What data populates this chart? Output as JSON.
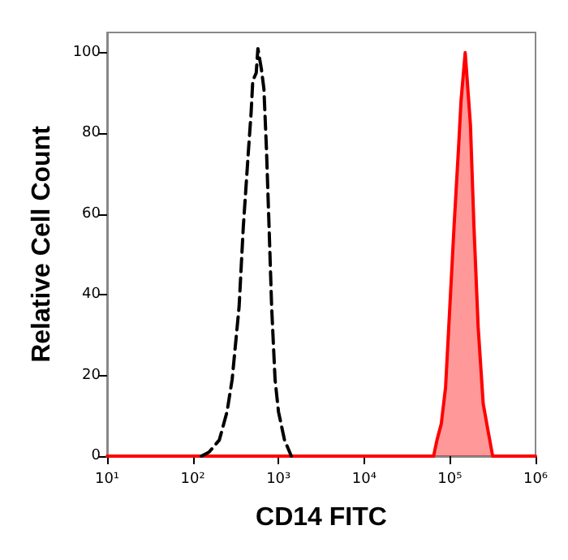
{
  "chart_data": {
    "type": "line",
    "xlabel": "CD14 FITC",
    "ylabel": "Relative Cell Count",
    "log": "x",
    "xlim": [
      10,
      1000000
    ],
    "ylim": [
      0,
      105
    ],
    "xticks": [
      {
        "value": 10,
        "label": "10¹"
      },
      {
        "value": 100,
        "label": "10²"
      },
      {
        "value": 1000,
        "label": "10³"
      },
      {
        "value": 10000,
        "label": "10⁴"
      },
      {
        "value": 100000,
        "label": "10⁵"
      },
      {
        "value": 1000000,
        "label": "10⁶"
      }
    ],
    "yticks": [
      0,
      20,
      40,
      60,
      80,
      100
    ],
    "grid": false,
    "marker": "none",
    "series": [
      {
        "type": "line",
        "color": "#000000",
        "line_style": "dashed",
        "x": [
          126,
          155,
          204,
          251,
          288,
          347,
          389,
          447,
          479,
          501,
          550,
          575,
          631,
          676,
          724,
          776,
          832,
          912,
          1000,
          1175,
          1349,
          1413
        ],
        "values": [
          0,
          1,
          4,
          11,
          19,
          37,
          57,
          76,
          85,
          93,
          95,
          101,
          96,
          91,
          76,
          57,
          37,
          19,
          11,
          4,
          1,
          0
        ]
      },
      {
        "type": "area",
        "color": "#ff0000",
        "line_style": "solid",
        "x": [
          10,
          64600,
          70800,
          79400,
          89100,
          97700,
          112000,
          126000,
          135000,
          151000,
          166000,
          174000,
          191000,
          214000,
          245000,
          275000,
          316000,
          1000000
        ],
        "values": [
          0,
          0,
          4,
          8,
          17,
          33,
          57,
          76,
          88,
          100,
          88,
          82,
          57,
          32,
          13,
          7,
          0,
          0
        ]
      }
    ]
  }
}
